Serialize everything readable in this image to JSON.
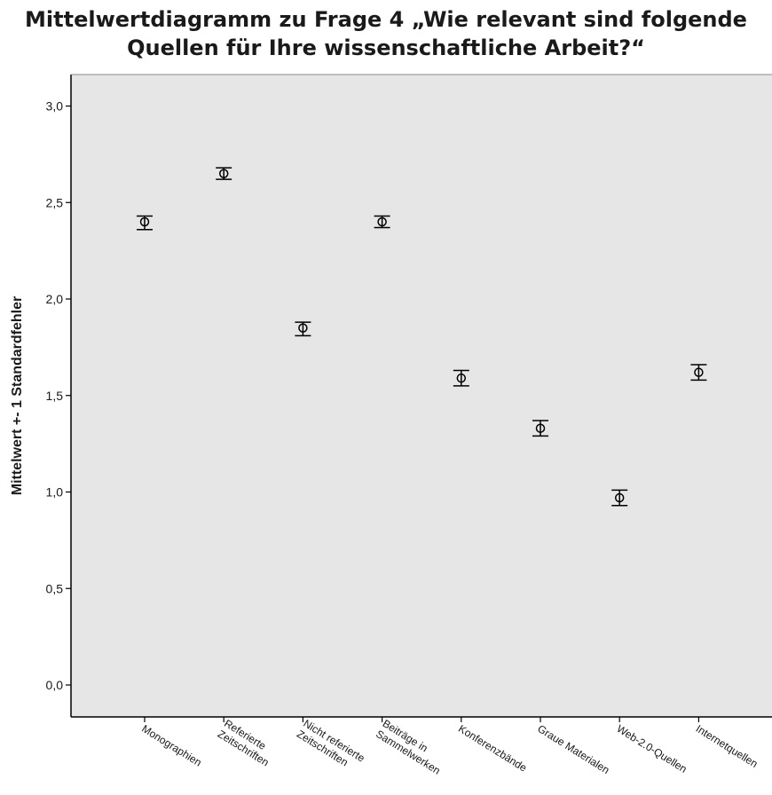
{
  "chart_data": {
    "type": "errorbar",
    "title_lines": [
      "Mittelwertdiagramm zu Frage 4 „Wie relevant sind folgende",
      "Quellen für Ihre wissenschaftliche Arbeit?“"
    ],
    "ylabel": "Mittelwert +- 1 Standardfehler",
    "xlabel": "",
    "ylim": [
      0,
      3.1
    ],
    "yticks": [
      {
        "value": 0,
        "label": "0,0"
      },
      {
        "value": 0.5,
        "label": "0,5"
      },
      {
        "value": 1,
        "label": "1,0"
      },
      {
        "value": 1.5,
        "label": "1,5"
      },
      {
        "value": 2,
        "label": "2,0"
      },
      {
        "value": 2.5,
        "label": "2,5"
      },
      {
        "value": 3,
        "label": "3,0"
      }
    ],
    "categories": [
      {
        "lines": [
          "Monographien"
        ]
      },
      {
        "lines": [
          "Referierte",
          "Zeitschriften"
        ]
      },
      {
        "lines": [
          "Nicht referierte",
          "Zeitschriften"
        ]
      },
      {
        "lines": [
          "Beiträge in",
          "Sammelwerken"
        ]
      },
      {
        "lines": [
          "Konferenzbände"
        ]
      },
      {
        "lines": [
          "Graue Materialen"
        ]
      },
      {
        "lines": [
          "Web-2.0-Quellen"
        ]
      },
      {
        "lines": [
          "Internetquellen"
        ]
      }
    ],
    "means": [
      2.4,
      2.65,
      1.85,
      2.4,
      1.59,
      1.33,
      0.97,
      1.62
    ],
    "lower": [
      2.36,
      2.62,
      1.81,
      2.37,
      1.55,
      1.29,
      0.93,
      1.58
    ],
    "upper": [
      2.43,
      2.68,
      1.88,
      2.43,
      1.63,
      1.37,
      1.01,
      1.66
    ],
    "grid": false,
    "colors": {
      "plot_background": "#e6e6e6",
      "axis": "#000000",
      "marker": "#000000"
    }
  }
}
